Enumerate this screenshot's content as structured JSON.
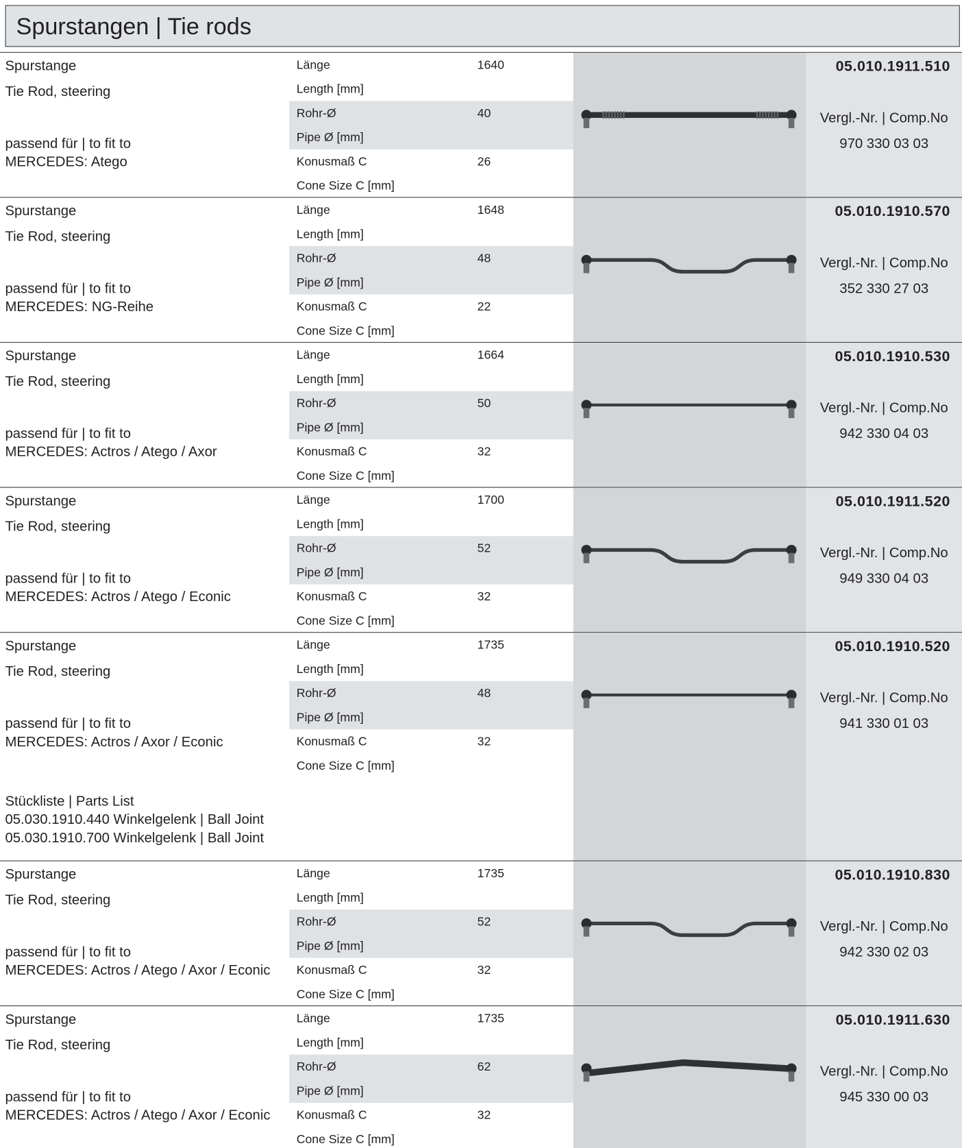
{
  "header": {
    "title": "Spurstangen | Tie rods"
  },
  "products": [
    {
      "name_de": "Spurstange",
      "name_en": "Tie Rod, steering",
      "fit_label": "passend für | to fit to",
      "fit": "MERCEDES: Atego",
      "specs": [
        {
          "label_de": "Länge",
          "label_en": "Length [mm]",
          "value": 1640
        },
        {
          "label_de": "Rohr-Ø",
          "label_en": "Pipe Ø [mm]",
          "value": 40
        },
        {
          "label_de": "Konusmaß C",
          "label_en": "Cone Size C [mm]",
          "value": 26
        }
      ],
      "part_number": "05.010.1911.510",
      "comp_label": "Vergl.-Nr. | Comp.No",
      "comp_number": "970 330 03 03"
    },
    {
      "name_de": "Spurstange",
      "name_en": "Tie Rod, steering",
      "fit_label": "passend für | to fit to",
      "fit": "MERCEDES: NG-Reihe",
      "specs": [
        {
          "label_de": "Länge",
          "label_en": "Length [mm]",
          "value": 1648
        },
        {
          "label_de": "Rohr-Ø",
          "label_en": "Pipe Ø [mm]",
          "value": 48
        },
        {
          "label_de": "Konusmaß C",
          "label_en": "Cone Size C [mm]",
          "value": 22
        }
      ],
      "part_number": "05.010.1910.570",
      "comp_label": "Vergl.-Nr. | Comp.No",
      "comp_number": "352 330 27 03"
    },
    {
      "name_de": "Spurstange",
      "name_en": "Tie Rod, steering",
      "fit_label": "passend für | to fit to",
      "fit": "MERCEDES: Actros / Atego / Axor",
      "specs": [
        {
          "label_de": "Länge",
          "label_en": "Length [mm]",
          "value": 1664
        },
        {
          "label_de": "Rohr-Ø",
          "label_en": "Pipe Ø [mm]",
          "value": 50
        },
        {
          "label_de": "Konusmaß C",
          "label_en": "Cone Size C [mm]",
          "value": 32
        }
      ],
      "part_number": "05.010.1910.530",
      "comp_label": "Vergl.-Nr. | Comp.No",
      "comp_number": "942 330 04 03"
    },
    {
      "name_de": "Spurstange",
      "name_en": "Tie Rod, steering",
      "fit_label": "passend für | to fit to",
      "fit": "MERCEDES: Actros / Atego / Econic",
      "specs": [
        {
          "label_de": "Länge",
          "label_en": "Length [mm]",
          "value": 1700
        },
        {
          "label_de": "Rohr-Ø",
          "label_en": "Pipe Ø [mm]",
          "value": 52
        },
        {
          "label_de": "Konusmaß C",
          "label_en": "Cone Size C [mm]",
          "value": 32
        }
      ],
      "part_number": "05.010.1911.520",
      "comp_label": "Vergl.-Nr. | Comp.No",
      "comp_number": "949 330 04 03"
    },
    {
      "name_de": "Spurstange",
      "name_en": "Tie Rod, steering",
      "fit_label": "passend für | to fit to",
      "fit": "MERCEDES: Actros / Axor / Econic",
      "specs": [
        {
          "label_de": "Länge",
          "label_en": "Length [mm]",
          "value": 1735
        },
        {
          "label_de": "Rohr-Ø",
          "label_en": "Pipe Ø [mm]",
          "value": 48
        },
        {
          "label_de": "Konusmaß C",
          "label_en": "Cone Size C [mm]",
          "value": 32
        }
      ],
      "parts_list": {
        "title": "Stückliste | Parts List",
        "items": [
          "05.030.1910.440 Winkelgelenk | Ball Joint",
          "05.030.1910.700 Winkelgelenk | Ball Joint"
        ]
      },
      "part_number": "05.010.1910.520",
      "comp_label": "Vergl.-Nr. | Comp.No",
      "comp_number": "941 330 01 03"
    },
    {
      "name_de": "Spurstange",
      "name_en": "Tie Rod, steering",
      "fit_label": "passend für | to fit to",
      "fit": "MERCEDES: Actros / Atego / Axor / Econic",
      "specs": [
        {
          "label_de": "Länge",
          "label_en": "Length [mm]",
          "value": 1735
        },
        {
          "label_de": "Rohr-Ø",
          "label_en": "Pipe Ø [mm]",
          "value": 52
        },
        {
          "label_de": "Konusmaß C",
          "label_en": "Cone Size C [mm]",
          "value": 32
        }
      ],
      "part_number": "05.010.1910.830",
      "comp_label": "Vergl.-Nr. | Comp.No",
      "comp_number": "942 330 02 03"
    },
    {
      "name_de": "Spurstange",
      "name_en": "Tie Rod, steering",
      "fit_label": "passend für | to fit to",
      "fit": "MERCEDES: Actros / Atego / Axor / Econic",
      "specs": [
        {
          "label_de": "Länge",
          "label_en": "Length [mm]",
          "value": 1735
        },
        {
          "label_de": "Rohr-Ø",
          "label_en": "Pipe Ø [mm]",
          "value": 62
        },
        {
          "label_de": "Konusmaß C",
          "label_en": "Cone Size C [mm]",
          "value": 32
        }
      ],
      "part_number": "05.010.1911.630",
      "comp_label": "Vergl.-Nr. | Comp.No",
      "comp_number": "945 330 00 03"
    }
  ]
}
